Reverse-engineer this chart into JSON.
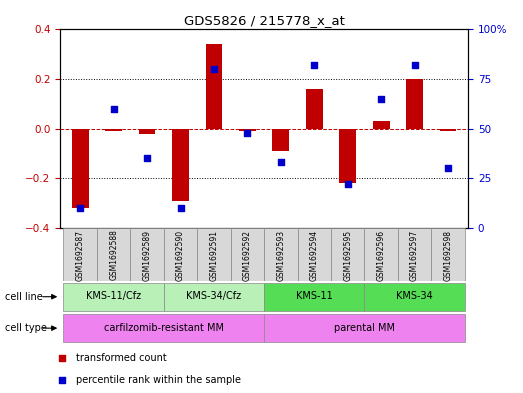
{
  "title": "GDS5826 / 215778_x_at",
  "samples": [
    "GSM1692587",
    "GSM1692588",
    "GSM1692589",
    "GSM1692590",
    "GSM1692591",
    "GSM1692592",
    "GSM1692593",
    "GSM1692594",
    "GSM1692595",
    "GSM1692596",
    "GSM1692597",
    "GSM1692598"
  ],
  "transformed_count": [
    -0.32,
    -0.01,
    -0.02,
    -0.29,
    0.34,
    -0.01,
    -0.09,
    0.16,
    -0.22,
    0.03,
    0.2,
    -0.01
  ],
  "percentile_rank": [
    10,
    60,
    35,
    10,
    80,
    48,
    33,
    82,
    22,
    65,
    82,
    30
  ],
  "bar_color": "#c00000",
  "dot_color": "#0000cc",
  "cell_line_groups": [
    {
      "label": "KMS-11/Cfz",
      "start": 0,
      "end": 2,
      "color": "#b8f0b8"
    },
    {
      "label": "KMS-34/Cfz",
      "start": 3,
      "end": 5,
      "color": "#b8f0b8"
    },
    {
      "label": "KMS-11",
      "start": 6,
      "end": 8,
      "color": "#55dd55"
    },
    {
      "label": "KMS-34",
      "start": 9,
      "end": 11,
      "color": "#55dd55"
    }
  ],
  "cell_type_groups": [
    {
      "label": "carfilzomib-resistant MM",
      "start": 0,
      "end": 5,
      "color": "#ee82ee"
    },
    {
      "label": "parental MM",
      "start": 6,
      "end": 11,
      "color": "#ee82ee"
    }
  ],
  "ylim_left": [
    -0.4,
    0.4
  ],
  "ylim_right": [
    0,
    100
  ],
  "yticks_left": [
    -0.4,
    -0.2,
    0.0,
    0.2,
    0.4
  ],
  "yticks_right": [
    0,
    25,
    50,
    75,
    100
  ],
  "ytick_labels_right": [
    "0",
    "25",
    "50",
    "75",
    "100%"
  ],
  "legend_items": [
    {
      "label": "transformed count",
      "color": "#c00000",
      "marker": "s"
    },
    {
      "label": "percentile rank within the sample",
      "color": "#0000cc",
      "marker": "s"
    }
  ],
  "cell_line_label": "cell line",
  "cell_type_label": "cell type",
  "sample_bg_color": "#d8d8d8"
}
